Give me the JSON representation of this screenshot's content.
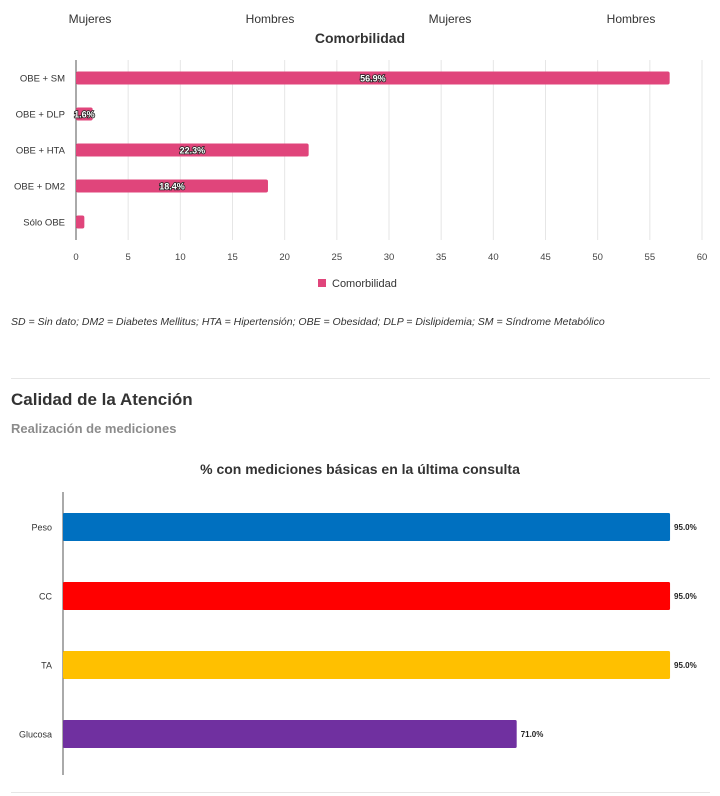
{
  "column_headers": [
    "Mujeres",
    "Hombres",
    "Mujeres",
    "Hombres"
  ],
  "footnote": "SD = Sin dato; DM2 = Diabetes Mellitus; HTA = Hipertensión; OBE = Obesidad; DLP = Dislipidemia; SM = Síndrome Metabólico",
  "section": {
    "title": "Calidad de la Atención",
    "subtitle": "Realización de mediciones"
  },
  "chart_data": [
    {
      "type": "bar",
      "orientation": "horizontal",
      "title": "Comorbilidad",
      "categories": [
        "OBE + SM",
        "OBE + DLP",
        "OBE + HTA",
        "OBE + DM2",
        "Sólo OBE"
      ],
      "series": [
        {
          "name": "Comorbilidad",
          "values": [
            56.9,
            1.6,
            22.3,
            18.4,
            0.8
          ],
          "labels": [
            "56.9%",
            "1.6%",
            "22.3%",
            "18.4%",
            ""
          ],
          "color": "#e0457b"
        }
      ],
      "xlim": [
        0,
        60
      ],
      "xticks": [
        0,
        5,
        10,
        15,
        20,
        25,
        30,
        35,
        40,
        45,
        50,
        55,
        60
      ],
      "grid": true,
      "legend": "bottom"
    },
    {
      "type": "bar",
      "orientation": "horizontal",
      "title": "% con mediciones básicas en la última consulta",
      "categories": [
        "Peso",
        "CC",
        "TA",
        "Glucosa"
      ],
      "values": [
        95.0,
        95.0,
        95.0,
        71.0
      ],
      "labels": [
        "95.0%",
        "95.0%",
        "95.0%",
        "71.0%"
      ],
      "colors": [
        "#0070c0",
        "#ff0000",
        "#ffc000",
        "#7030a0"
      ],
      "xlim": [
        0,
        100
      ],
      "grid": false,
      "legend": "none"
    }
  ]
}
